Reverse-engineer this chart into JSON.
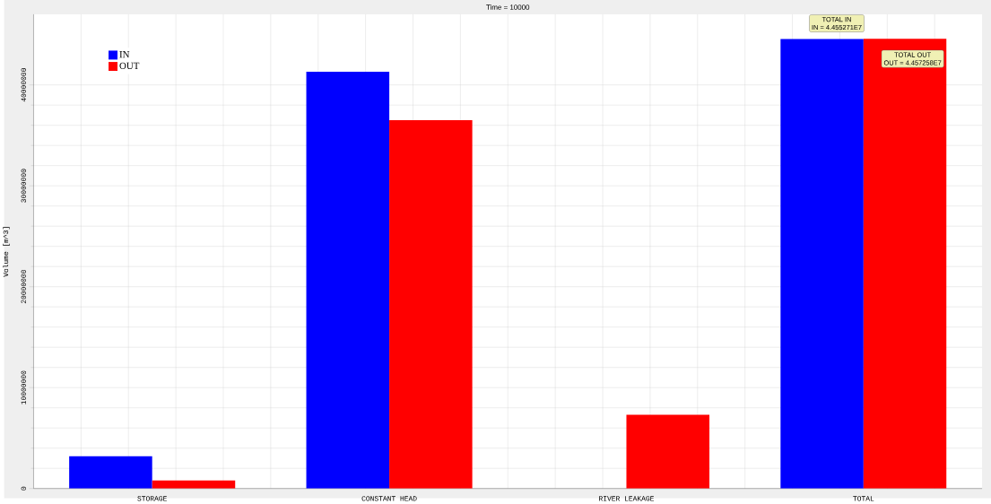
{
  "chart_data": {
    "type": "bar",
    "title": "Time = 10000",
    "ylabel": "Volume [m^3]",
    "categories": [
      "STORAGE",
      "CONSTANT HEAD",
      "RIVER LEAKAGE",
      "TOTAL"
    ],
    "series": [
      {
        "name": "IN",
        "color": "#0000ff",
        "values": [
          3200000,
          41300000,
          0,
          44552710
        ]
      },
      {
        "name": "OUT",
        "color": "#ff0000",
        "values": [
          800000,
          36500000,
          7300000,
          44572580
        ]
      }
    ],
    "ylim": [
      0,
      47000000
    ],
    "yticks": [
      0,
      10000000,
      20000000,
      30000000,
      40000000
    ],
    "grid": true,
    "legend": "top left",
    "annotations": [
      "TOTAL IN",
      "IN = 4.455271E7",
      "TOTAL OUT",
      "OUT = 4.457258E7"
    ]
  }
}
